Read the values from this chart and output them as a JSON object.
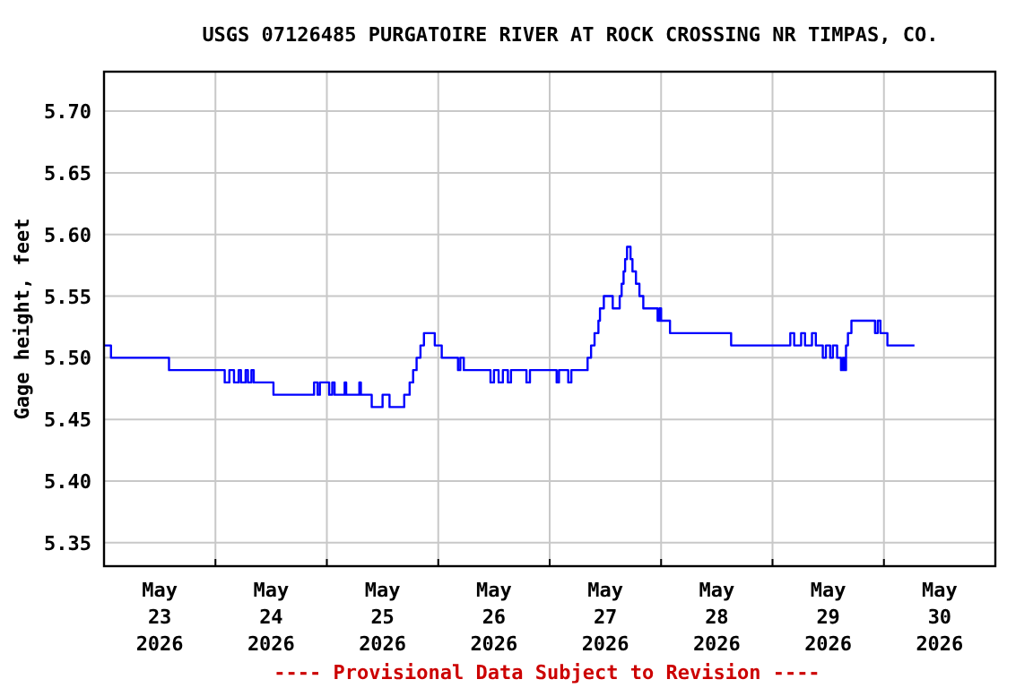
{
  "chart_data": {
    "type": "step",
    "title": "USGS 07126485 PURGATOIRE RIVER AT ROCK CROSSING NR TIMPAS, CO.",
    "ylabel": "Gage height, feet",
    "annotations": [
      "---- Provisional Data Subject to Revision ----"
    ],
    "xlim": [
      "2026-05-23T00:00",
      "2026-05-31T00:00"
    ],
    "xticks": [
      {
        "value": "2026-05-23T12:00",
        "label": "May 23 2026"
      },
      {
        "value": "2026-05-24T12:00",
        "label": "May 24 2026"
      },
      {
        "value": "2026-05-25T12:00",
        "label": "May 25 2026"
      },
      {
        "value": "2026-05-26T12:00",
        "label": "May 26 2026"
      },
      {
        "value": "2026-05-27T12:00",
        "label": "May 27 2026"
      },
      {
        "value": "2026-05-28T12:00",
        "label": "May 28 2026"
      },
      {
        "value": "2026-05-29T12:00",
        "label": "May 29 2026"
      },
      {
        "value": "2026-05-30T12:00",
        "label": "May 30 2026"
      },
      {
        "value": "2026-05-24T00:00",
        "label": null
      },
      {
        "value": "2026-05-25T00:00",
        "label": null
      },
      {
        "value": "2026-05-26T00:00",
        "label": null
      },
      {
        "value": "2026-05-27T00:00",
        "label": null
      },
      {
        "value": "2026-05-28T00:00",
        "label": null
      },
      {
        "value": "2026-05-29T00:00",
        "label": null
      },
      {
        "value": "2026-05-30T00:00",
        "label": null
      }
    ],
    "ylim": [
      5.331,
      5.732
    ],
    "yticks": [
      {
        "value": 5.35,
        "label": "5.35"
      },
      {
        "value": 5.4,
        "label": "5.40"
      },
      {
        "value": 5.45,
        "label": "5.45"
      },
      {
        "value": 5.5,
        "label": "5.50"
      },
      {
        "value": 5.55,
        "label": "5.55"
      },
      {
        "value": 5.6,
        "label": "5.60"
      },
      {
        "value": 5.65,
        "label": "5.65"
      },
      {
        "value": 5.7,
        "label": "5.70"
      }
    ],
    "grid": true,
    "series": [
      {
        "color": "#0000ff",
        "x": [
          "2026-05-23T00:00",
          "2026-05-23T01:30",
          "2026-05-23T14:00",
          "2026-05-24T02:00",
          "2026-05-24T03:00",
          "2026-05-24T04:00",
          "2026-05-24T05:00",
          "2026-05-24T05:30",
          "2026-05-24T06:30",
          "2026-05-24T07:00",
          "2026-05-24T07:45",
          "2026-05-24T08:15",
          "2026-05-24T12:30",
          "2026-05-24T21:15",
          "2026-05-24T22:00",
          "2026-05-24T22:30",
          "2026-05-25T00:30",
          "2026-05-25T01:10",
          "2026-05-25T01:40",
          "2026-05-25T03:50",
          "2026-05-25T04:10",
          "2026-05-25T07:00",
          "2026-05-25T07:20",
          "2026-05-25T09:40",
          "2026-05-25T12:00",
          "2026-05-25T13:30",
          "2026-05-25T16:40",
          "2026-05-25T17:50",
          "2026-05-25T18:35",
          "2026-05-25T19:20",
          "2026-05-25T20:10",
          "2026-05-25T20:55",
          "2026-05-25T23:15",
          "2026-05-26T00:45",
          "2026-05-26T04:15",
          "2026-05-26T04:45",
          "2026-05-26T05:30",
          "2026-05-26T11:15",
          "2026-05-26T12:00",
          "2026-05-26T13:00",
          "2026-05-26T13:55",
          "2026-05-26T15:00",
          "2026-05-26T15:40",
          "2026-05-26T19:00",
          "2026-05-26T19:45",
          "2026-05-27T01:30",
          "2026-05-27T02:00",
          "2026-05-27T04:00",
          "2026-05-27T04:40",
          "2026-05-27T08:10",
          "2026-05-27T08:55",
          "2026-05-27T09:40",
          "2026-05-27T10:30",
          "2026-05-27T10:50",
          "2026-05-27T11:40",
          "2026-05-27T13:35",
          "2026-05-27T15:05",
          "2026-05-27T15:30",
          "2026-05-27T15:55",
          "2026-05-27T16:15",
          "2026-05-27T16:40",
          "2026-05-27T17:25",
          "2026-05-27T17:50",
          "2026-05-27T18:35",
          "2026-05-27T19:20",
          "2026-05-27T20:10",
          "2026-05-27T23:15",
          "2026-05-27T23:40",
          "2026-05-28T00:00",
          "2026-05-28T01:55",
          "2026-05-28T15:05",
          "2026-05-29T03:50",
          "2026-05-29T04:40",
          "2026-05-29T06:10",
          "2026-05-29T07:00",
          "2026-05-29T08:30",
          "2026-05-29T09:20",
          "2026-05-29T10:50",
          "2026-05-29T11:30",
          "2026-05-29T12:25",
          "2026-05-29T13:00",
          "2026-05-29T13:55",
          "2026-05-29T14:45",
          "2026-05-29T15:10",
          "2026-05-29T15:30",
          "2026-05-29T15:50",
          "2026-05-29T16:15",
          "2026-05-29T17:00",
          "2026-05-29T22:05",
          "2026-05-29T22:40",
          "2026-05-29T23:15",
          "2026-05-30T00:45",
          "2026-05-30T06:35"
        ],
        "values": [
          5.51,
          5.5,
          5.49,
          5.48,
          5.49,
          5.48,
          5.49,
          5.48,
          5.49,
          5.48,
          5.49,
          5.48,
          5.47,
          5.48,
          5.47,
          5.48,
          5.47,
          5.48,
          5.47,
          5.48,
          5.47,
          5.48,
          5.47,
          5.46,
          5.47,
          5.46,
          5.47,
          5.48,
          5.49,
          5.5,
          5.51,
          5.52,
          5.51,
          5.5,
          5.49,
          5.5,
          5.49,
          5.48,
          5.49,
          5.48,
          5.49,
          5.48,
          5.49,
          5.48,
          5.49,
          5.48,
          5.49,
          5.48,
          5.49,
          5.5,
          5.51,
          5.52,
          5.53,
          5.54,
          5.55,
          5.54,
          5.55,
          5.56,
          5.57,
          5.58,
          5.59,
          5.58,
          5.57,
          5.56,
          5.55,
          5.54,
          5.53,
          5.54,
          5.53,
          5.52,
          5.51,
          5.52,
          5.51,
          5.52,
          5.51,
          5.52,
          5.51,
          5.5,
          5.51,
          5.5,
          5.51,
          5.5,
          5.49,
          5.5,
          5.49,
          5.51,
          5.52,
          5.53,
          5.52,
          5.53,
          5.52,
          5.51,
          5.51
        ]
      }
    ]
  }
}
